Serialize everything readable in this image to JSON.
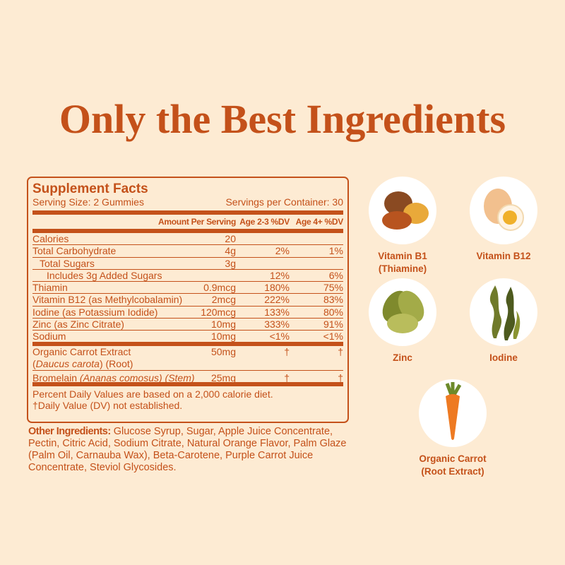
{
  "title": "Only the Best Ingredients",
  "facts": {
    "heading": "Supplement Facts",
    "serving_size": "Serving Size: 2 Gummies",
    "servings_per_container": "Servings per Container: 30",
    "columns": [
      "Amount Per Serving",
      "Age 2-3 %DV",
      "Age 4+ %DV"
    ],
    "rows": [
      {
        "name": "Calories",
        "amount": "20",
        "dv1": "",
        "dv2": ""
      },
      {
        "name": "Total Carbohydrate",
        "amount": "4g",
        "dv1": "2%",
        "dv2": "1%"
      },
      {
        "name": "Total Sugars",
        "amount": "3g",
        "dv1": "",
        "dv2": ""
      },
      {
        "name": "Includes 3g Added Sugars",
        "amount": "",
        "dv1": "12%",
        "dv2": "6%"
      },
      {
        "name": "Thiamin",
        "amount": "0.9mcg",
        "dv1": "180%",
        "dv2": "75%"
      },
      {
        "name": "Vitamin B12 (as Methylcobalamin)",
        "amount": "2mcg",
        "dv1": "222%",
        "dv2": "83%"
      },
      {
        "name": "Iodine (as Potassium Iodide)",
        "amount": "120mcg",
        "dv1": "133%",
        "dv2": "80%"
      },
      {
        "name": "Zinc (as Zinc Citrate)",
        "amount": "10mg",
        "dv1": "333%",
        "dv2": "91%"
      },
      {
        "name": "Sodium",
        "amount": "10mg",
        "dv1": "<1%",
        "dv2": "<1%"
      }
    ],
    "carrot": {
      "name1": "Organic Carrot Extract",
      "latin": "Daucus carota",
      "name2": " (Root)",
      "amount": "50mg",
      "dv1": "†",
      "dv2": "†"
    },
    "bromelain": {
      "name": "Bromelain",
      "latin": "(Ananas comosus) (Stem)",
      "amount": "25mg",
      "dv1": "†",
      "dv2": "†"
    },
    "footnote1": "Percent Daily Values are based on a 2,000 calorie diet.",
    "footnote2": "†Daily Value (DV) not established."
  },
  "other": {
    "label": "Other Ingredients:",
    "text": " Glucose Syrup, Sugar, Apple Juice Concentrate, Pectin, Citric Acid, Sodium Citrate, Natural Orange Flavor, Palm Glaze (Palm Oil, Carnauba Wax), Beta-Carotene, Purple Carrot Juice Concentrate, Steviol Glycosides."
  },
  "ingredients": [
    {
      "label": "Vitamin B1\n(Thiamine)",
      "icon": "nuts-icon"
    },
    {
      "label": "Vitamin B12",
      "icon": "egg-icon"
    },
    {
      "label": "Zinc",
      "icon": "pumpkin-seeds-icon"
    },
    {
      "label": "Iodine",
      "icon": "seaweed-icon"
    },
    {
      "label": "Organic Carrot\n(Root Extract)",
      "icon": "carrot-icon"
    }
  ],
  "colors": {
    "background": "#fdebd3",
    "accent": "#c4511a"
  }
}
